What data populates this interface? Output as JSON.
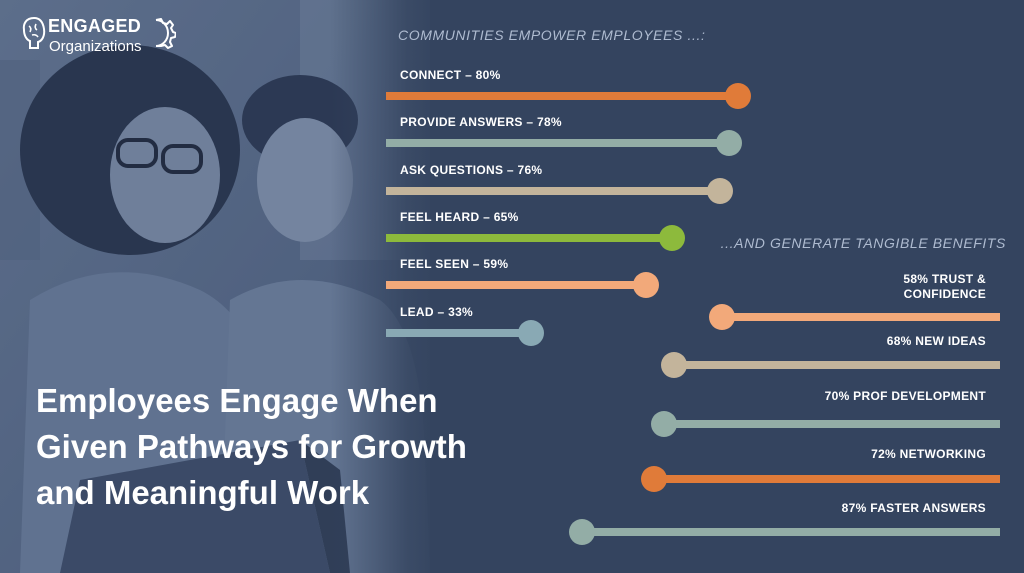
{
  "logo": {
    "name": "ENGAGED",
    "sub": "Organizations"
  },
  "headline": [
    "Employees Engage When",
    "Given Pathways for Growth",
    "and Meaningful Work"
  ],
  "chart_data": [
    {
      "type": "bar",
      "title": "COMMUNITIES EMPOWER EMPLOYEES ...:",
      "items": [
        {
          "label": "CONNECT – 80%",
          "value": 80,
          "color": "#e07b39"
        },
        {
          "label": "PROVIDE ANSWERS – 78%",
          "value": 78,
          "color": "#93ada6"
        },
        {
          "label": "ASK QUESTIONS – 76%",
          "value": 76,
          "color": "#c3b49b"
        },
        {
          "label": "FEEL HEARD – 65%",
          "value": 65,
          "color": "#8dba3c"
        },
        {
          "label": "FEEL SEEN – 59%",
          "value": 59,
          "color": "#f2a97a"
        },
        {
          "label": "LEAD – 33%",
          "value": 33,
          "color": "#89a9b4"
        }
      ]
    },
    {
      "type": "bar",
      "title": "...AND GENERATE TANGIBLE BENEFITS",
      "items": [
        {
          "label": "58% TRUST &\nCONFIDENCE",
          "value": 58,
          "color": "#f2a97a"
        },
        {
          "label": "68% NEW IDEAS",
          "value": 68,
          "color": "#c3b49b"
        },
        {
          "label": "70% PROF DEVELOPMENT",
          "value": 70,
          "color": "#93ada6"
        },
        {
          "label": "72% NETWORKING",
          "value": 72,
          "color": "#e07b39"
        },
        {
          "label": "87% FASTER ANSWERS",
          "value": 87,
          "color": "#93ada6"
        }
      ]
    }
  ]
}
